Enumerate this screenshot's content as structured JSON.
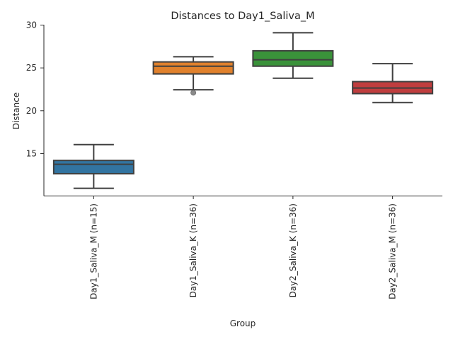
{
  "chart_data": {
    "type": "box",
    "title": "Distances to Day1_Saliva_M",
    "xlabel": "Group",
    "ylabel": "Distance",
    "ylim": [
      10.05,
      30
    ],
    "yticks": [
      15,
      20,
      25,
      30
    ],
    "grid": false,
    "categories": [
      "Day1_Saliva_M (n=15)",
      "Day1_Saliva_K (n=36)",
      "Day2_Saliva_K (n=36)",
      "Day2_Saliva_M (n=36)"
    ],
    "colors": [
      "#3274a1",
      "#e1812c",
      "#3a923a",
      "#c03d3e"
    ],
    "boxes": [
      {
        "whislo": 10.95,
        "q1": 12.65,
        "med": 13.75,
        "q3": 14.2,
        "whishi": 16.05,
        "fliers": []
      },
      {
        "whislo": 22.45,
        "q1": 24.3,
        "med": 25.2,
        "q3": 25.7,
        "whishi": 26.3,
        "fliers": [
          22.1
        ]
      },
      {
        "whislo": 23.8,
        "q1": 25.2,
        "med": 25.95,
        "q3": 27.0,
        "whishi": 29.1,
        "fliers": []
      },
      {
        "whislo": 20.95,
        "q1": 22.0,
        "med": 22.65,
        "q3": 23.4,
        "whishi": 25.5,
        "fliers": []
      }
    ]
  }
}
